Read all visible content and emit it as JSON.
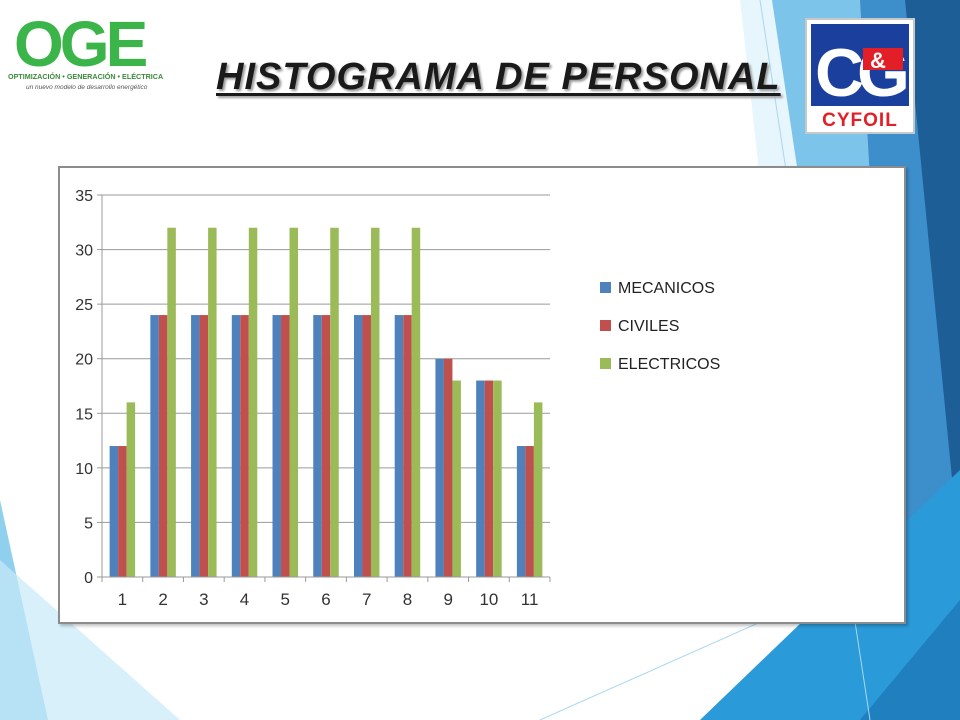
{
  "slide": {
    "title": "HISTOGRAMA DE PERSONAL"
  },
  "logos": {
    "left": {
      "wordmark": "OGE",
      "tagline": "OPTIMIZACIÓN • GENERACIÓN • ELÉCTRICA",
      "subtitle": "un nuevo modelo de desarrollo energético",
      "color": "#3bb54a"
    },
    "right": {
      "monogram_left": "C",
      "monogram_mid": "&",
      "monogram_right": "G",
      "name": "CYFOIL",
      "colors": {
        "blue": "#1a3f9c",
        "red": "#e21f26"
      }
    }
  },
  "theme": {
    "accent_blue": "#2a7fc0",
    "accent_light": "#63b7e6",
    "accent_dark": "#1d5e96"
  },
  "chart_data": {
    "type": "bar",
    "categories": [
      "1",
      "2",
      "3",
      "4",
      "5",
      "6",
      "7",
      "8",
      "9",
      "10",
      "11"
    ],
    "series": [
      {
        "name": "MECANICOS",
        "color": "#4f81bd",
        "values": [
          12,
          24,
          24,
          24,
          24,
          24,
          24,
          24,
          20,
          18,
          12
        ]
      },
      {
        "name": "CIVILES",
        "color": "#c0504d",
        "values": [
          12,
          24,
          24,
          24,
          24,
          24,
          24,
          24,
          20,
          18,
          12
        ]
      },
      {
        "name": "ELECTRICOS",
        "color": "#9bbb59",
        "values": [
          16,
          32,
          32,
          32,
          32,
          32,
          32,
          32,
          18,
          18,
          16
        ]
      }
    ],
    "yticks": [
      0,
      5,
      10,
      15,
      20,
      25,
      30,
      35
    ],
    "ylim": [
      0,
      35
    ],
    "grid": true,
    "legend": "right"
  }
}
